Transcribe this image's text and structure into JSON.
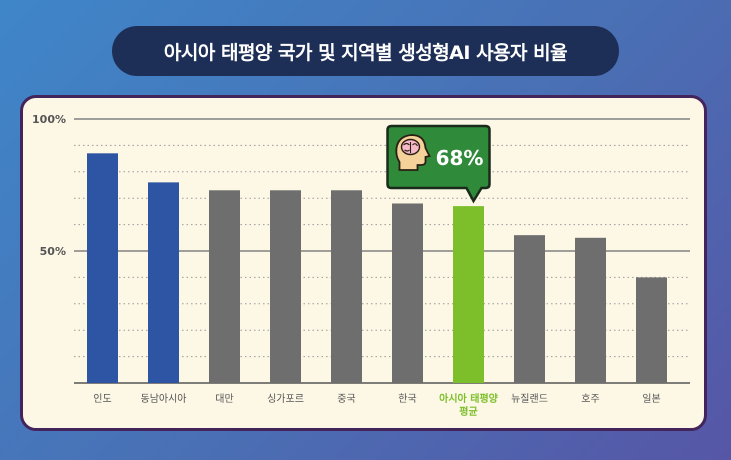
{
  "header": {
    "title": "아시아 태평양 국가 및 지역별 생성형AI 사용자 비율"
  },
  "callout": {
    "label": "68%",
    "icon": "brain-head-icon"
  },
  "colors": {
    "blue": "#2e55a3",
    "gray": "#6e6e6e",
    "green": "#7cbf2a",
    "callout_bg": "#2f8a3a"
  },
  "chart_data": {
    "type": "bar",
    "title": "아시아 태평양 국가 및 지역별 생성형AI 사용자 비율",
    "xlabel": "",
    "ylabel": "",
    "ylim": [
      0,
      100
    ],
    "yticks": [
      {
        "value": 100,
        "label": "100%"
      },
      {
        "value": 50,
        "label": "50%"
      }
    ],
    "grid": true,
    "categories": [
      {
        "label": [
          "인도"
        ],
        "value": 87,
        "color": "blue"
      },
      {
        "label": [
          "동남아시아"
        ],
        "value": 76,
        "color": "blue"
      },
      {
        "label": [
          "대만"
        ],
        "value": 73,
        "color": "gray"
      },
      {
        "label": [
          "싱가포르"
        ],
        "value": 73,
        "color": "gray"
      },
      {
        "label": [
          "중국"
        ],
        "value": 73,
        "color": "gray"
      },
      {
        "label": [
          "한국"
        ],
        "value": 68,
        "color": "gray"
      },
      {
        "label": [
          "아시아 태평양",
          "평균"
        ],
        "value": 67,
        "color": "green",
        "highlight": true
      },
      {
        "label": [
          "뉴질랜드"
        ],
        "value": 56,
        "color": "gray"
      },
      {
        "label": [
          "호주"
        ],
        "value": 55,
        "color": "gray"
      },
      {
        "label": [
          "일본"
        ],
        "value": 40,
        "color": "gray"
      }
    ]
  }
}
